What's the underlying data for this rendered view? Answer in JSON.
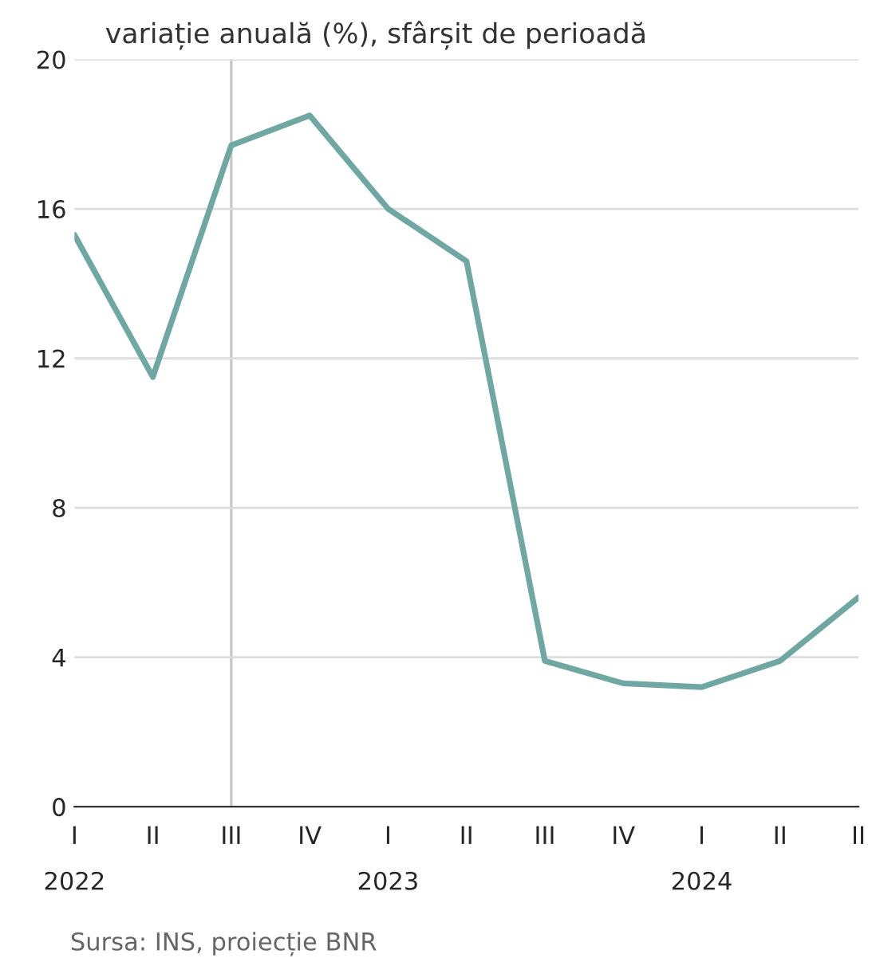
{
  "chart_data": {
    "type": "line",
    "title": "variație anuală (%), sfârșit de perioadă",
    "categories": [
      "I\n2022",
      "II",
      "III",
      "IV",
      "I\n2023",
      "II",
      "III",
      "IV",
      "I\n2024",
      "II",
      "II"
    ],
    "series": [
      {
        "color": "#6fa8a3",
        "values": [
          15.3,
          11.5,
          17.7,
          18.5,
          16.0,
          14.6,
          3.9,
          3.3,
          3.2,
          3.9,
          5.6
        ]
      }
    ],
    "ylim": [
      0,
      20
    ],
    "yticks": [
      0,
      4,
      8,
      12,
      16,
      20
    ],
    "grid": "y",
    "legend": false,
    "marker": "none",
    "line_style": "solid",
    "ref_lines": [
      {
        "axis": "x",
        "value": "III",
        "color": "#c8c8c8"
      }
    ],
    "annotations": [
      "Sursa: INS, proiecție BNR"
    ]
  }
}
